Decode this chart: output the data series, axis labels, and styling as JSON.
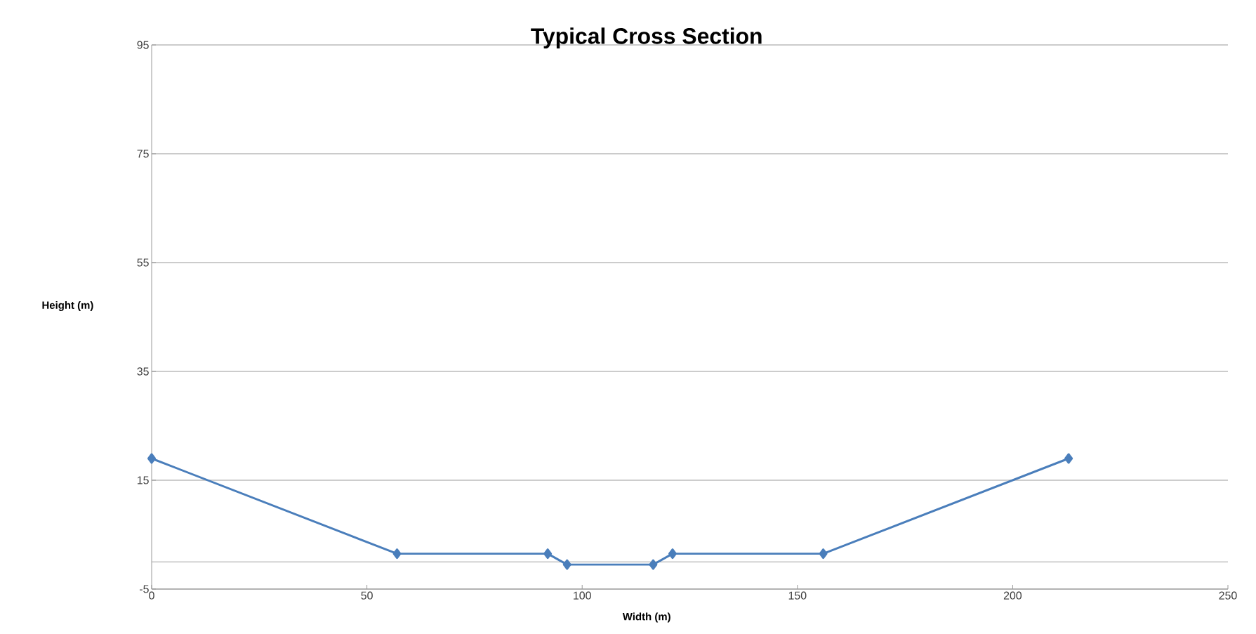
{
  "chart_data": {
    "type": "line",
    "title": "Typical Cross Section",
    "xlabel": "Width (m)",
    "ylabel": "Height (m)",
    "series": [
      {
        "color": "#4a7ebb",
        "x": [
          0,
          57,
          92,
          96.5,
          116.5,
          121,
          156,
          213
        ],
        "values": [
          19,
          1.5,
          1.5,
          -0.5,
          -0.5,
          1.5,
          1.5,
          19
        ]
      }
    ],
    "xlim": [
      0,
      250
    ],
    "xticks": [
      0,
      50,
      100,
      150,
      200,
      250
    ],
    "ylim": [
      -5,
      95
    ],
    "yticks": [
      -5,
      15,
      35,
      55,
      75,
      95
    ],
    "ref_lines": [
      {
        "axis": "y",
        "value": 0,
        "color": "#a0a0a0"
      }
    ],
    "grid": "y",
    "marker": "diamond",
    "line_style": "solid"
  }
}
